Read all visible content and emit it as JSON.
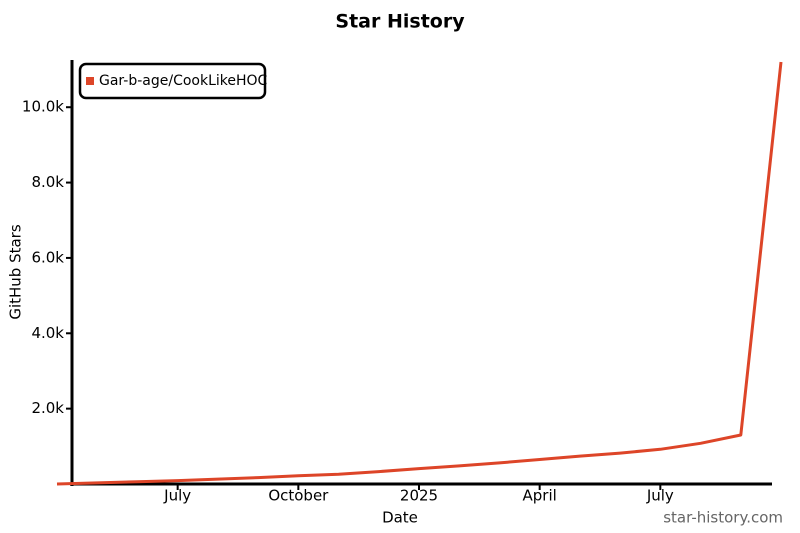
{
  "chart_data": {
    "type": "line",
    "title": "Star History",
    "x_label": "Date",
    "y_label": "GitHub Stars",
    "watermark": "star-history.com",
    "x": [
      "2024-04",
      "2024-05",
      "2024-06",
      "2024-07",
      "2024-08",
      "2024-09",
      "2024-10",
      "2024-11",
      "2024-12",
      "2025-01",
      "2025-02",
      "2025-03",
      "2025-04",
      "2025-05",
      "2025-06",
      "2025-07",
      "2025-08",
      "2025-09",
      "2025-10"
    ],
    "series": [
      {
        "name": "Gar-b-age/CookLikeHOC",
        "color": "#dd4528",
        "values": [
          0,
          30,
          60,
          90,
          130,
          170,
          220,
          260,
          330,
          410,
          480,
          560,
          650,
          740,
          820,
          920,
          1080,
          1300,
          11200
        ]
      }
    ],
    "xlim": [
      "2024-04",
      "2025-10"
    ],
    "xticks": [
      {
        "value": "2024-07",
        "label": "July"
      },
      {
        "value": "2024-10",
        "label": "October"
      },
      {
        "value": "2025-01",
        "label": "2025"
      },
      {
        "value": "2025-04",
        "label": "April"
      },
      {
        "value": "2025-07",
        "label": "July"
      }
    ],
    "ylim": [
      0,
      11200
    ],
    "yticks": [
      {
        "value": 2000,
        "label": "2.0k"
      },
      {
        "value": 4000,
        "label": "4.0k"
      },
      {
        "value": 6000,
        "label": "6.0k"
      },
      {
        "value": 8000,
        "label": "8.0k"
      },
      {
        "value": 10000,
        "label": "10.0k"
      }
    ],
    "grid": false,
    "legend": "top-left"
  }
}
